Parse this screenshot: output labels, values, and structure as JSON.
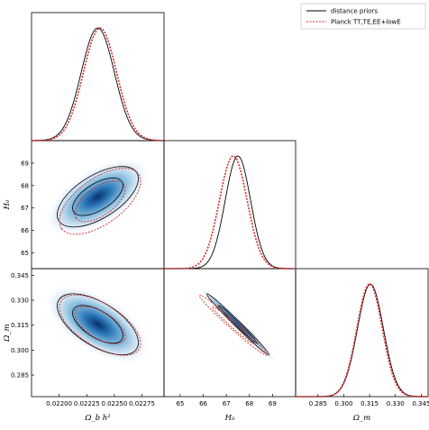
{
  "chart_data": {
    "type": "corner",
    "legend": {
      "placement": "top-right",
      "entries": [
        {
          "label": "distance priors",
          "color": "#000000",
          "style": "solid"
        },
        {
          "label": "Planck TT,TE,EE+lowE",
          "color": "#d62728",
          "style": "dashed"
        }
      ]
    },
    "parameters": [
      {
        "id": "obh2",
        "label": "Ω_b h²",
        "range": [
          0.02175,
          0.02295
        ],
        "ticks": [
          0.022,
          0.02225,
          0.0225,
          0.02275
        ],
        "tick_labels": [
          "0.02200",
          "0.02225",
          "0.02250",
          "0.02275"
        ]
      },
      {
        "id": "H0",
        "label": "H₀",
        "range": [
          64.3,
          70.0
        ],
        "ticks": [
          65,
          66,
          67,
          68,
          69
        ],
        "tick_labels": [
          "65",
          "66",
          "67",
          "68",
          "69"
        ]
      },
      {
        "id": "Om",
        "label": "Ω_m",
        "range": [
          0.272,
          0.349
        ],
        "ticks": [
          0.285,
          0.3,
          0.315,
          0.33,
          0.345
        ],
        "tick_labels": [
          "0.285",
          "0.300",
          "0.315",
          "0.330",
          "0.345"
        ]
      }
    ],
    "marginals": {
      "distance priors": {
        "obh2": {
          "mean": 0.02235,
          "sigma": 0.00015
        },
        "H0": {
          "mean": 67.5,
          "sigma": 0.55
        },
        "Om": {
          "mean": 0.3155,
          "sigma": 0.0075
        }
      },
      "Planck TT,TE,EE+lowE": {
        "obh2": {
          "mean": 0.02237,
          "sigma": 0.00015
        },
        "H0": {
          "mean": 67.3,
          "sigma": 0.6
        },
        "Om": {
          "mean": 0.315,
          "sigma": 0.0074
        }
      }
    },
    "correlations": {
      "distance priors": {
        "H0_obh2": 0.6,
        "Om_obh2": -0.6,
        "Om_H0": -0.99
      },
      "Planck TT,TE,EE+lowE": {
        "H0_obh2": 0.6,
        "Om_obh2": -0.6,
        "Om_H0": -0.985
      }
    },
    "contour_levels": [
      "68%",
      "95%"
    ]
  }
}
